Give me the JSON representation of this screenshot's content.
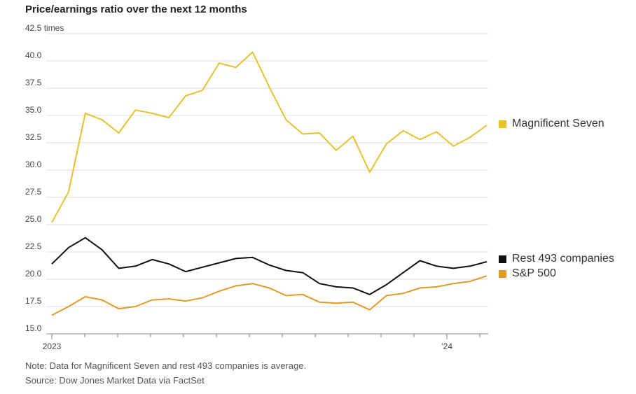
{
  "title": "Price/earnings ratio over the next 12 months",
  "note": "Note: Data for Magnificent Seven and rest 493 companies is average.",
  "source": "Source: Dow Jones Market Data via FactSet",
  "chart_data": {
    "type": "line",
    "title": "Price/earnings ratio over the next 12 months",
    "unit": "times",
    "ylim": [
      15.0,
      42.5
    ],
    "y_ticks": [
      "15.0",
      "17.5",
      "20.0",
      "22.5",
      "25.0",
      "27.5",
      "30.0",
      "32.5",
      "35.0",
      "37.5",
      "40.0",
      "42.5 times"
    ],
    "x_ticks": [
      "2023",
      "’24"
    ],
    "grid": true,
    "legend_placement": "right",
    "x": [
      "2023-01",
      "2023-01b",
      "2023-02",
      "2023-02b",
      "2023-03",
      "2023-03b",
      "2023-04",
      "2023-04b",
      "2023-05",
      "2023-05b",
      "2023-06",
      "2023-06b",
      "2023-07",
      "2023-07b",
      "2023-08",
      "2023-08b",
      "2023-09",
      "2023-09b",
      "2023-10",
      "2023-10b",
      "2023-11",
      "2023-11b",
      "2023-12",
      "2023-12b",
      "2024-01",
      "2024-01b",
      "2024-02"
    ],
    "series": [
      {
        "name": "Magnificent Seven",
        "color": "#e6c230",
        "values": [
          25.2,
          28.0,
          35.2,
          34.6,
          33.4,
          35.5,
          35.2,
          34.8,
          36.8,
          37.3,
          39.8,
          39.4,
          40.8,
          37.6,
          34.6,
          33.3,
          33.4,
          31.8,
          33.1,
          29.8,
          32.4,
          33.6,
          32.8,
          33.5,
          32.2,
          33.0,
          34.1
        ]
      },
      {
        "name": "Rest 493 companies",
        "color": "#111111",
        "values": [
          21.4,
          22.9,
          23.8,
          22.7,
          21.0,
          21.2,
          21.8,
          21.4,
          20.7,
          21.1,
          21.5,
          21.9,
          22.0,
          21.3,
          20.8,
          20.6,
          19.6,
          19.3,
          19.2,
          18.6,
          19.5,
          20.6,
          21.7,
          21.2,
          21.0,
          21.2,
          21.6
        ]
      },
      {
        "name": "S&P 500",
        "color": "#e09a2a",
        "values": [
          16.7,
          17.5,
          18.4,
          18.1,
          17.3,
          17.5,
          18.1,
          18.2,
          18.0,
          18.3,
          18.9,
          19.4,
          19.6,
          19.2,
          18.5,
          18.6,
          17.9,
          17.8,
          17.9,
          17.2,
          18.5,
          18.7,
          19.2,
          19.3,
          19.6,
          19.8,
          20.3
        ]
      }
    ]
  },
  "legend": [
    {
      "label": "Magnificent Seven",
      "color": "#e6c230"
    },
    {
      "label": "Rest 493 companies",
      "color": "#111111"
    },
    {
      "label": "S&P 500",
      "color": "#e09a2a"
    }
  ]
}
